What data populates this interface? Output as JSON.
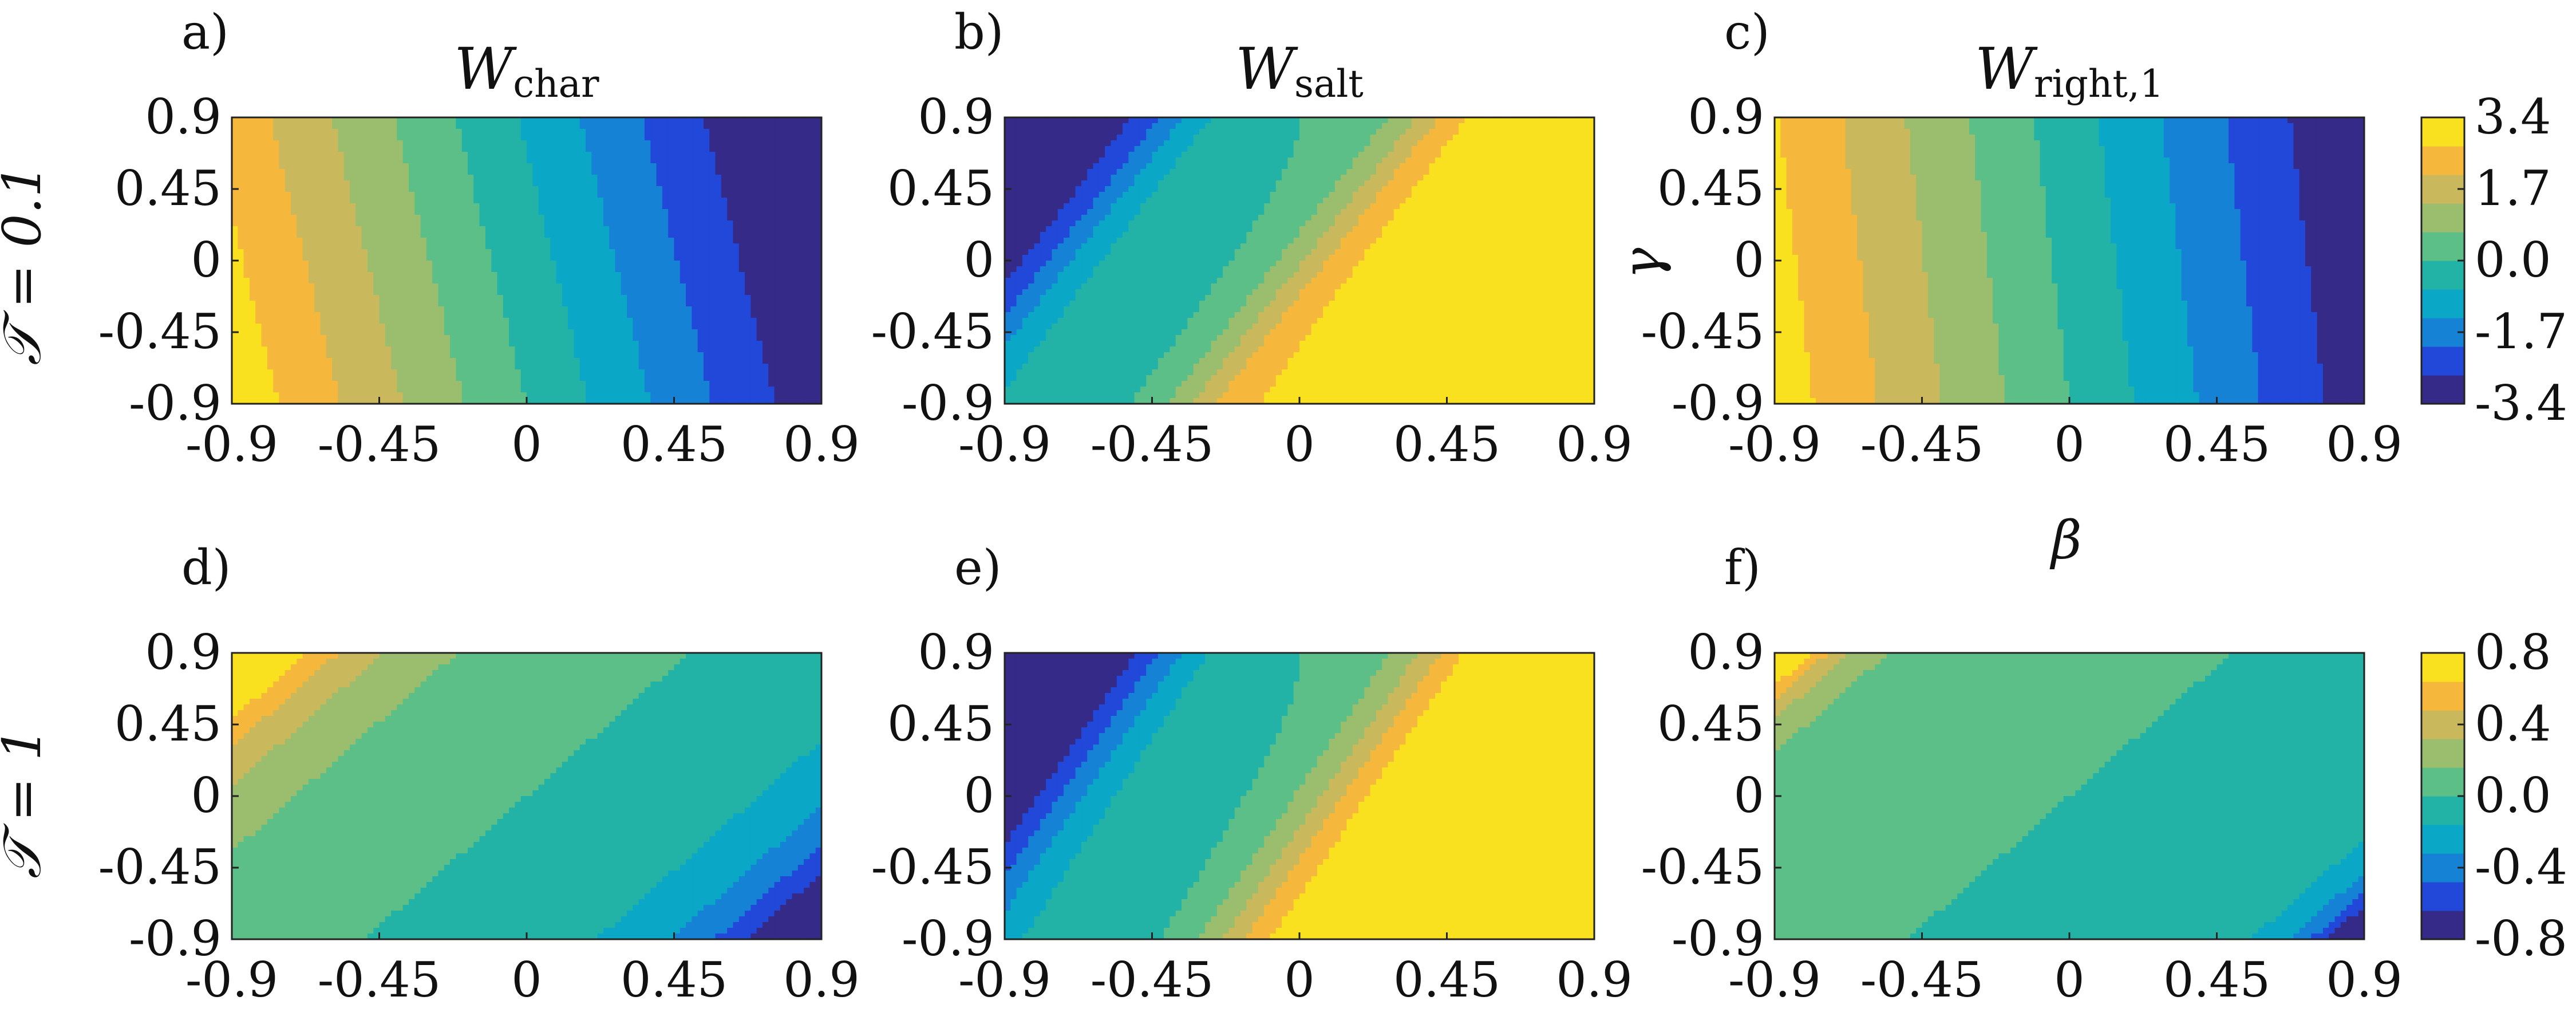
{
  "figure": {
    "row_labels": [
      "𝒯 = 0.1",
      "𝒯 = 1"
    ],
    "x_axis_label": "β",
    "y_axis_label": "γ"
  },
  "colors": {
    "levels": [
      "#352a87",
      "#2148d8",
      "#1682d6",
      "#0ba7c6",
      "#22b3a6",
      "#5cbf88",
      "#9bbd6e",
      "#c9b95c",
      "#f6b83c",
      "#f9e11f"
    ],
    "axis": "#222222"
  },
  "chart_data": [
    {
      "type": "contour",
      "panel_label": "a)",
      "title_main": "W",
      "title_sub": "char",
      "x_ticks": [
        "-0.9",
        "-0.45",
        "0",
        "0.45",
        "0.9"
      ],
      "y_ticks": [
        "0.9",
        "0.45",
        "0",
        "-0.45",
        "-0.9"
      ],
      "xlim": [
        -0.9,
        0.9
      ],
      "ylim": [
        -0.9,
        0.9
      ],
      "row": 0,
      "col": 0,
      "field": {
        "kind": "linear",
        "amp": -3.4,
        "skew": 0.12,
        "bulge": 0.0
      }
    },
    {
      "type": "contour",
      "panel_label": "b)",
      "title_main": "W",
      "title_sub": "salt",
      "x_ticks": [
        "-0.9",
        "-0.45",
        "0",
        "0.45",
        "0.9"
      ],
      "y_ticks": [
        "0.9",
        "0.45",
        "0",
        "-0.45",
        "-0.9"
      ],
      "xlim": [
        -0.9,
        0.9
      ],
      "ylim": [
        -0.9,
        0.9
      ],
      "row": 0,
      "col": 1,
      "field": {
        "kind": "odd",
        "amp": 3.0,
        "sharp": 10,
        "center": 0.4
      }
    },
    {
      "type": "contour",
      "panel_label": "c)",
      "title_main": "W",
      "title_sub": "right,1",
      "x_ticks": [
        "-0.9",
        "-0.45",
        "0",
        "0.45",
        "0.9"
      ],
      "y_ticks": [
        "0.9",
        "0.45",
        "0",
        "-0.45",
        "-0.9"
      ],
      "xlim": [
        -0.9,
        0.9
      ],
      "ylim": [
        -0.9,
        0.9
      ],
      "row": 0,
      "col": 2,
      "field": {
        "kind": "linear",
        "amp": -3.3,
        "skew": 0.06,
        "bulge": 0.0
      },
      "colorbar": {
        "ticks": [
          "3.4",
          "1.7",
          "0.0",
          "-1.7",
          "-3.4"
        ],
        "min": -3.4,
        "max": 3.4
      }
    },
    {
      "type": "contour",
      "panel_label": "d)",
      "title_main": "",
      "title_sub": "",
      "x_ticks": [
        "-0.9",
        "-0.45",
        "0",
        "0.45",
        "0.9"
      ],
      "y_ticks": [
        "0.9",
        "0.45",
        "0",
        "-0.45",
        "-0.9"
      ],
      "xlim": [
        -0.9,
        0.9
      ],
      "ylim": [
        -0.9,
        0.9
      ],
      "row": 1,
      "col": 0,
      "field": {
        "kind": "corner",
        "amp": 0.8,
        "sharp": 3.0
      }
    },
    {
      "type": "contour",
      "panel_label": "e)",
      "title_main": "",
      "title_sub": "",
      "x_ticks": [
        "-0.9",
        "-0.45",
        "0",
        "0.45",
        "0.9"
      ],
      "y_ticks": [
        "0.9",
        "0.45",
        "0",
        "-0.45",
        "-0.9"
      ],
      "xlim": [
        -0.9,
        0.9
      ],
      "ylim": [
        -0.9,
        0.9
      ],
      "row": 1,
      "col": 1,
      "field": {
        "kind": "odd",
        "amp": 0.8,
        "sharp": 8,
        "center": 0.35
      }
    },
    {
      "type": "contour",
      "panel_label": "f)",
      "title_main": "",
      "title_sub": "",
      "x_ticks": [
        "-0.9",
        "-0.45",
        "0",
        "0.45",
        "0.9"
      ],
      "y_ticks": [
        "0.9",
        "0.45",
        "0",
        "-0.45",
        "-0.9"
      ],
      "xlim": [
        -0.9,
        0.9
      ],
      "ylim": [
        -0.9,
        0.9
      ],
      "row": 1,
      "col": 2,
      "field": {
        "kind": "corner",
        "amp": 0.8,
        "sharp": 6.0
      },
      "colorbar": {
        "ticks": [
          "0.8",
          "0.4",
          "0.0",
          "-0.4",
          "-0.8"
        ],
        "min": -0.8,
        "max": 0.8
      }
    }
  ]
}
